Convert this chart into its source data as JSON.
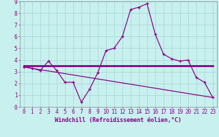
{
  "background_color": "#c8f0ee",
  "grid_color": "#a8d8d8",
  "line_color": "#880088",
  "xlabel": "Windchill (Refroidissement éolien,°C)",
  "xlim": [
    -0.5,
    23.5
  ],
  "ylim": [
    0,
    9
  ],
  "line1_x": [
    0,
    1,
    2,
    3,
    4,
    5,
    6,
    7,
    8,
    9,
    10,
    11,
    12,
    13,
    14,
    15,
    16,
    17,
    18,
    19,
    20,
    21,
    22,
    23
  ],
  "line1_y": [
    3.4,
    3.3,
    3.1,
    3.9,
    3.1,
    2.1,
    2.1,
    0.4,
    1.5,
    2.9,
    4.8,
    5.0,
    6.0,
    8.3,
    8.5,
    8.8,
    6.2,
    4.5,
    4.1,
    3.9,
    4.0,
    2.5,
    2.1,
    0.8
  ],
  "line2_x": [
    0,
    23
  ],
  "line2_y": [
    3.5,
    3.5
  ],
  "line3_x": [
    0,
    23
  ],
  "line3_y": [
    3.4,
    0.8
  ],
  "font_family": "monospace",
  "tick_fontsize": 5.5,
  "label_fontsize": 6.0
}
